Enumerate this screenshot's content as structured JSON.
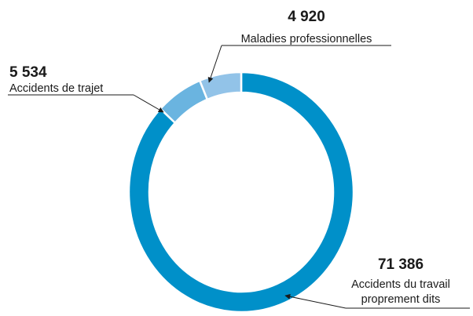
{
  "chart_data": {
    "type": "pie",
    "title": "",
    "slices": [
      {
        "value": 71386,
        "value_text": "71 386",
        "label_lines": [
          "Accidents du travail",
          "proprement dits"
        ],
        "color": "#0090c9"
      },
      {
        "value": 5534,
        "value_text": "5 534",
        "label_lines": [
          "Accidents de trajet"
        ],
        "color": "#6ab4e0"
      },
      {
        "value": 4920,
        "value_text": "4 920",
        "label_lines": [
          "Maladies professionnelles"
        ],
        "color": "#92c3e8"
      }
    ],
    "separator_color": "#ffffff",
    "text_color": "#1a1a1a"
  }
}
